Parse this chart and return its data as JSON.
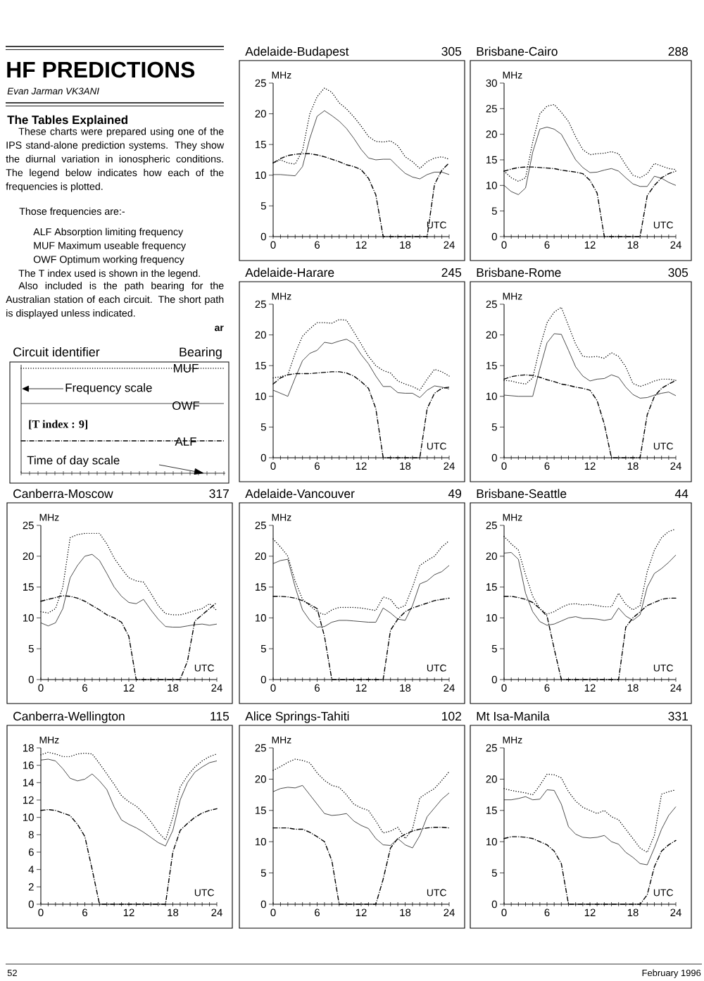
{
  "chart_data": [
    {
      "type": "other",
      "title": "HF PREDICTIONS",
      "subtitle": "Evan Jarman VK3ANI",
      "annotations": [
        "The Tables Explained",
        "These charts were prepared using one of the IPS stand-alone prediction systems. They show the diurnal variation in ionospheric conditions. The legend below indicates how each of the frequencies is plotted.",
        "Those frequencies are:-",
        "ALF Absorption limiting frequency",
        "MUF Maximum useable frequency",
        "OWF Optimum working frequency",
        "The T index used is shown in the legend.",
        "Also included is the path bearing for the Australian station of each circuit. The short path is displayed unless indicated.",
        "ar",
        "Circuit identifier",
        "Bearing",
        "MUF",
        "Frequency scale",
        "OWF",
        "[T index : 9]",
        "ALF",
        "Time of day scale",
        "52",
        "February 1996"
      ]
    },
    {
      "type": "line",
      "title": "Adelaide-Budapest",
      "subtitle": "305",
      "xlabel": "UTC",
      "ylabel": "MHz",
      "x": [
        0,
        1,
        2,
        3,
        4,
        5,
        6,
        7,
        8,
        9,
        10,
        11,
        12,
        13,
        14,
        15,
        16,
        17,
        18,
        19,
        20,
        21,
        22,
        23,
        24
      ],
      "xlim": [
        0,
        24
      ],
      "ylim": [
        0,
        25
      ],
      "yticks": [
        0,
        5,
        10,
        15,
        20,
        25
      ],
      "xticks": [
        0,
        {
          "value": 1,
          "label": null
        },
        {
          "value": 2,
          "label": null
        },
        {
          "value": 3,
          "label": null
        },
        {
          "value": 4,
          "label": null
        },
        {
          "value": 5,
          "label": null
        },
        6,
        {
          "value": 7,
          "label": null
        },
        {
          "value": 8,
          "label": null
        },
        {
          "value": 9,
          "label": null
        },
        {
          "value": 10,
          "label": null
        },
        {
          "value": 11,
          "label": null
        },
        12,
        {
          "value": 13,
          "label": null
        },
        {
          "value": 14,
          "label": null
        },
        {
          "value": 15,
          "label": null
        },
        {
          "value": 16,
          "label": null
        },
        {
          "value": 17,
          "label": null
        },
        18,
        {
          "value": 19,
          "label": null
        },
        {
          "value": 20,
          "label": null
        },
        {
          "value": 21,
          "label": null
        },
        {
          "value": 22,
          "label": null
        },
        {
          "value": 23,
          "label": null
        },
        24
      ],
      "series": [
        {
          "color": "#000000",
          "line_style": "dotted",
          "values": [
            12,
            12.5,
            12,
            11.8,
            14,
            20,
            22.8,
            24.2,
            23.5,
            21.8,
            20.8,
            19.5,
            18,
            16.3,
            15.5,
            15.4,
            15.6,
            14.8,
            13,
            12.2,
            11.1,
            12.2,
            12.8,
            13,
            12.6
          ]
        },
        {
          "color": "#000000",
          "line_style": "solid",
          "values": [
            10.1,
            10.1,
            10,
            9.9,
            11.4,
            16,
            19.6,
            20.5,
            19.7,
            18.8,
            17.6,
            16,
            14.2,
            12.8,
            12.5,
            12.6,
            12.6,
            11.4,
            10.3,
            9.7,
            9.4,
            10.1,
            10.5,
            10.5,
            10.1
          ]
        },
        {
          "color": "#000000",
          "line_style": "dashed",
          "values": [
            12,
            12.7,
            13.2,
            13.4,
            13.5,
            13.5,
            13.3,
            13,
            12.6,
            12.2,
            11.7,
            11.4,
            10.9,
            9.5,
            6.8,
            0,
            0,
            0,
            0,
            0,
            0,
            0,
            8.5,
            10.8,
            12
          ]
        }
      ]
    },
    {
      "type": "line",
      "title": "Brisbane-Cairo",
      "subtitle": "288",
      "xlabel": "UTC",
      "ylabel": "MHz",
      "x": [
        0,
        1,
        2,
        3,
        4,
        5,
        6,
        7,
        8,
        9,
        10,
        11,
        12,
        13,
        14,
        15,
        16,
        17,
        18,
        19,
        20,
        21,
        22,
        23,
        24
      ],
      "xlim": [
        0,
        24
      ],
      "ylim": [
        0,
        30
      ],
      "yticks": [
        0,
        5,
        10,
        15,
        20,
        25,
        30
      ],
      "xticks": [
        0,
        {
          "value": 1,
          "label": null
        },
        {
          "value": 2,
          "label": null
        },
        {
          "value": 3,
          "label": null
        },
        {
          "value": 4,
          "label": null
        },
        {
          "value": 5,
          "label": null
        },
        6,
        {
          "value": 7,
          "label": null
        },
        {
          "value": 8,
          "label": null
        },
        {
          "value": 9,
          "label": null
        },
        {
          "value": 10,
          "label": null
        },
        {
          "value": 11,
          "label": null
        },
        12,
        {
          "value": 13,
          "label": null
        },
        {
          "value": 14,
          "label": null
        },
        {
          "value": 15,
          "label": null
        },
        {
          "value": 16,
          "label": null
        },
        {
          "value": 17,
          "label": null
        },
        18,
        {
          "value": 19,
          "label": null
        },
        {
          "value": 20,
          "label": null
        },
        {
          "value": 21,
          "label": null
        },
        {
          "value": 22,
          "label": null
        },
        {
          "value": 23,
          "label": null
        },
        24
      ],
      "series": [
        {
          "color": "#000000",
          "line_style": "dotted",
          "values": [
            12.8,
            11.5,
            10.8,
            11.5,
            18.5,
            24,
            25.5,
            25.8,
            24.3,
            22.5,
            19.5,
            17,
            16,
            16.2,
            16.3,
            16.6,
            16.2,
            14,
            12,
            11.5,
            12.3,
            14.3,
            13.8,
            13.3,
            13.1
          ]
        },
        {
          "color": "#000000",
          "line_style": "solid",
          "values": [
            10,
            8.8,
            8.2,
            9.5,
            16.5,
            21,
            21.4,
            21,
            20,
            17.5,
            15,
            13.5,
            12.5,
            12.6,
            13,
            13.3,
            12.8,
            11.5,
            10.3,
            9.8,
            9.8,
            11.8,
            11.4,
            10.6,
            10
          ]
        },
        {
          "color": "#000000",
          "line_style": "dashed",
          "values": [
            12.8,
            13.2,
            13.5,
            13.6,
            13.6,
            13.5,
            13.4,
            13.3,
            13,
            12.8,
            12.6,
            12.3,
            11,
            8.5,
            0,
            0,
            0,
            0,
            0,
            0,
            8,
            10,
            11.5,
            12.3,
            12.8
          ]
        }
      ]
    },
    {
      "type": "line",
      "title": "Adelaide-Harare",
      "subtitle": "245",
      "xlabel": "UTC",
      "ylabel": "MHz",
      "x": [
        0,
        1,
        2,
        3,
        4,
        5,
        6,
        7,
        8,
        9,
        10,
        11,
        12,
        13,
        14,
        15,
        16,
        17,
        18,
        19,
        20,
        21,
        22,
        23,
        24
      ],
      "xlim": [
        0,
        24
      ],
      "ylim": [
        0,
        25
      ],
      "yticks": [
        0,
        5,
        10,
        15,
        20,
        25
      ],
      "xticks": [
        0,
        {
          "value": 1,
          "label": null
        },
        {
          "value": 2,
          "label": null
        },
        {
          "value": 3,
          "label": null
        },
        {
          "value": 4,
          "label": null
        },
        {
          "value": 5,
          "label": null
        },
        6,
        {
          "value": 7,
          "label": null
        },
        {
          "value": 8,
          "label": null
        },
        {
          "value": 9,
          "label": null
        },
        {
          "value": 10,
          "label": null
        },
        {
          "value": 11,
          "label": null
        },
        12,
        {
          "value": 13,
          "label": null
        },
        {
          "value": 14,
          "label": null
        },
        {
          "value": 15,
          "label": null
        },
        {
          "value": 16,
          "label": null
        },
        {
          "value": 17,
          "label": null
        },
        18,
        {
          "value": 19,
          "label": null
        },
        {
          "value": 20,
          "label": null
        },
        {
          "value": 21,
          "label": null
        },
        {
          "value": 22,
          "label": null
        },
        {
          "value": 23,
          "label": null
        },
        24
      ],
      "series": [
        {
          "color": "#000000",
          "line_style": "dotted",
          "values": [
            13,
            13.2,
            13.5,
            17,
            19.8,
            21,
            22,
            22,
            21.9,
            22.5,
            22.4,
            20.5,
            18.5,
            16.5,
            15,
            14.2,
            13.8,
            12.5,
            12,
            11.6,
            11,
            12.8,
            14.4,
            14,
            13.3
          ]
        },
        {
          "color": "#000000",
          "line_style": "solid",
          "values": [
            11,
            10.5,
            10,
            13,
            15.8,
            17,
            17.5,
            18.8,
            18.6,
            19,
            19.3,
            18.6,
            16.8,
            15.3,
            13.3,
            11.6,
            11.6,
            10.6,
            10.5,
            10.5,
            9.8,
            11,
            11.7,
            11.5,
            11.2
          ]
        },
        {
          "color": "#000000",
          "line_style": "dashed",
          "values": [
            12,
            13,
            13.5,
            13.7,
            13.7,
            13.7,
            13.8,
            13.9,
            14,
            14,
            13.8,
            13.3,
            12.4,
            11.3,
            8,
            0,
            0,
            0,
            0,
            0,
            0,
            8,
            10.5,
            11.3,
            11.5
          ]
        }
      ]
    },
    {
      "type": "line",
      "title": "Brisbane-Rome",
      "subtitle": "305",
      "xlabel": "UTC",
      "ylabel": "MHz",
      "x": [
        0,
        1,
        2,
        3,
        4,
        5,
        6,
        7,
        8,
        9,
        10,
        11,
        12,
        13,
        14,
        15,
        16,
        17,
        18,
        19,
        20,
        21,
        22,
        23,
        24
      ],
      "xlim": [
        0,
        24
      ],
      "ylim": [
        0,
        25
      ],
      "yticks": [
        0,
        5,
        10,
        15,
        20,
        25
      ],
      "xticks": [
        0,
        {
          "value": 1,
          "label": null
        },
        {
          "value": 2,
          "label": null
        },
        {
          "value": 3,
          "label": null
        },
        {
          "value": 4,
          "label": null
        },
        {
          "value": 5,
          "label": null
        },
        6,
        {
          "value": 7,
          "label": null
        },
        {
          "value": 8,
          "label": null
        },
        {
          "value": 9,
          "label": null
        },
        {
          "value": 10,
          "label": null
        },
        {
          "value": 11,
          "label": null
        },
        12,
        {
          "value": 13,
          "label": null
        },
        {
          "value": 14,
          "label": null
        },
        {
          "value": 15,
          "label": null
        },
        {
          "value": 16,
          "label": null
        },
        {
          "value": 17,
          "label": null
        },
        18,
        {
          "value": 19,
          "label": null
        },
        {
          "value": 20,
          "label": null
        },
        {
          "value": 21,
          "label": null
        },
        {
          "value": 22,
          "label": null
        },
        {
          "value": 23,
          "label": null
        },
        24
      ],
      "series": [
        {
          "color": "#000000",
          "line_style": "dotted",
          "values": [
            12.6,
            12.5,
            12.2,
            12,
            13,
            18,
            22,
            23.7,
            24.5,
            21.5,
            18.5,
            16.5,
            16.4,
            16.5,
            16.2,
            17.1,
            16.5,
            14.8,
            12.1,
            11.6,
            12,
            12.5,
            12.8,
            12.8,
            12.6
          ]
        },
        {
          "color": "#000000",
          "line_style": "solid",
          "values": [
            10.2,
            10.1,
            10,
            10,
            10,
            14.5,
            18.7,
            20.2,
            20.1,
            17.5,
            14.8,
            13.3,
            12.5,
            12.8,
            12.9,
            13.5,
            13.1,
            11.5,
            10.3,
            9.7,
            9.8,
            10.2,
            10.5,
            10.7,
            10.1
          ]
        },
        {
          "color": "#000000",
          "line_style": "dashed",
          "values": [
            12.8,
            13.2,
            13.4,
            13.5,
            13.4,
            13.1,
            12.7,
            12.4,
            12,
            11.8,
            11.5,
            11.3,
            11,
            9.3,
            5.5,
            0,
            0,
            0,
            0,
            0,
            7,
            10,
            11.3,
            12,
            12.6
          ]
        }
      ]
    },
    {
      "type": "line",
      "title": "Canberra-Moscow",
      "subtitle": "317",
      "xlabel": "UTC",
      "ylabel": "MHz",
      "x": [
        0,
        1,
        2,
        3,
        4,
        5,
        6,
        7,
        8,
        9,
        10,
        11,
        12,
        13,
        14,
        15,
        16,
        17,
        18,
        19,
        20,
        21,
        22,
        23,
        24
      ],
      "xlim": [
        0,
        24
      ],
      "ylim": [
        0,
        25
      ],
      "yticks": [
        0,
        5,
        10,
        15,
        20,
        25
      ],
      "xticks": [
        0,
        {
          "value": 1,
          "label": null
        },
        {
          "value": 2,
          "label": null
        },
        {
          "value": 3,
          "label": null
        },
        {
          "value": 4,
          "label": null
        },
        {
          "value": 5,
          "label": null
        },
        6,
        {
          "value": 7,
          "label": null
        },
        {
          "value": 8,
          "label": null
        },
        {
          "value": 9,
          "label": null
        },
        {
          "value": 10,
          "label": null
        },
        {
          "value": 11,
          "label": null
        },
        12,
        {
          "value": 13,
          "label": null
        },
        {
          "value": 14,
          "label": null
        },
        {
          "value": 15,
          "label": null
        },
        {
          "value": 16,
          "label": null
        },
        {
          "value": 17,
          "label": null
        },
        18,
        {
          "value": 19,
          "label": null
        },
        {
          "value": 20,
          "label": null
        },
        {
          "value": 21,
          "label": null
        },
        {
          "value": 22,
          "label": null
        },
        {
          "value": 23,
          "label": null
        },
        24
      ],
      "series": [
        {
          "color": "#000000",
          "line_style": "dotted",
          "values": [
            11,
            10.8,
            11.5,
            15,
            23,
            23.5,
            23.7,
            23.7,
            23.7,
            22,
            19.7,
            18,
            16.5,
            16,
            15.8,
            14,
            12,
            10.7,
            10.5,
            10.5,
            10.8,
            11.2,
            11.5,
            12.3,
            11.2
          ]
        },
        {
          "color": "#000000",
          "line_style": "solid",
          "values": [
            9.2,
            8.7,
            9.2,
            11.5,
            16.5,
            18.5,
            20,
            20.3,
            19.3,
            17.2,
            15,
            13.5,
            12.5,
            12.3,
            13,
            11.3,
            9.8,
            8.6,
            8.5,
            8.5,
            8.7,
            8.9,
            9,
            8.8,
            9
          ]
        },
        {
          "color": "#000000",
          "line_style": "dashed",
          "values": [
            12.7,
            13,
            13.3,
            13.6,
            13.5,
            13.2,
            12.7,
            12,
            11.3,
            10.5,
            10,
            9.3,
            7,
            0,
            0,
            0,
            0,
            0,
            0,
            0,
            3,
            9.5,
            10.5,
            11.5,
            12.5
          ]
        }
      ]
    },
    {
      "type": "line",
      "title": "Adelaide-Vancouver",
      "subtitle": "49",
      "xlabel": "UTC",
      "ylabel": "MHz",
      "x": [
        0,
        1,
        2,
        3,
        4,
        5,
        6,
        7,
        8,
        9,
        10,
        11,
        12,
        13,
        14,
        15,
        16,
        17,
        18,
        19,
        20,
        21,
        22,
        23,
        24
      ],
      "xlim": [
        0,
        24
      ],
      "ylim": [
        0,
        25
      ],
      "yticks": [
        0,
        5,
        10,
        15,
        20,
        25
      ],
      "xticks": [
        0,
        {
          "value": 1,
          "label": null
        },
        {
          "value": 2,
          "label": null
        },
        {
          "value": 3,
          "label": null
        },
        {
          "value": 4,
          "label": null
        },
        {
          "value": 5,
          "label": null
        },
        6,
        {
          "value": 7,
          "label": null
        },
        {
          "value": 8,
          "label": null
        },
        {
          "value": 9,
          "label": null
        },
        {
          "value": 10,
          "label": null
        },
        {
          "value": 11,
          "label": null
        },
        12,
        {
          "value": 13,
          "label": null
        },
        {
          "value": 14,
          "label": null
        },
        {
          "value": 15,
          "label": null
        },
        {
          "value": 16,
          "label": null
        },
        {
          "value": 17,
          "label": null
        },
        18,
        {
          "value": 19,
          "label": null
        },
        {
          "value": 20,
          "label": null
        },
        {
          "value": 21,
          "label": null
        },
        {
          "value": 22,
          "label": null
        },
        {
          "value": 23,
          "label": null
        },
        24
      ],
      "series": [
        {
          "color": "#000000",
          "line_style": "dotted",
          "values": [
            22.8,
            21.5,
            20,
            16,
            13,
            12,
            11,
            10.5,
            11.3,
            11.7,
            11.7,
            11.7,
            11.6,
            11.4,
            11.2,
            13.4,
            13,
            11.5,
            12,
            15,
            18.5,
            19.3,
            20,
            21.5,
            22.5
          ]
        },
        {
          "color": "#000000",
          "line_style": "solid",
          "values": [
            18.8,
            19.3,
            19.5,
            15,
            11.3,
            9.6,
            8.5,
            8.6,
            9.3,
            9.6,
            9.6,
            9.5,
            9.4,
            9.3,
            9.3,
            11.6,
            10.8,
            9.8,
            9.6,
            12,
            15.5,
            16,
            17,
            17.5,
            18.5
          ]
        },
        {
          "color": "#000000",
          "line_style": "dashed",
          "values": [
            13.5,
            13.5,
            13.4,
            13.2,
            12.8,
            12.2,
            11.5,
            7,
            0,
            0,
            0,
            0,
            0,
            0,
            0,
            0,
            8,
            9.8,
            11,
            11.6,
            12,
            12.4,
            12.8,
            13,
            13.2
          ]
        }
      ]
    },
    {
      "type": "line",
      "title": "Brisbane-Seattle",
      "subtitle": "44",
      "xlabel": "UTC",
      "ylabel": "MHz",
      "x": [
        0,
        1,
        2,
        3,
        4,
        5,
        6,
        7,
        8,
        9,
        10,
        11,
        12,
        13,
        14,
        15,
        16,
        17,
        18,
        19,
        20,
        21,
        22,
        23,
        24
      ],
      "xlim": [
        0,
        24
      ],
      "ylim": [
        0,
        25
      ],
      "yticks": [
        0,
        5,
        10,
        15,
        20,
        25
      ],
      "xticks": [
        0,
        {
          "value": 1,
          "label": null
        },
        {
          "value": 2,
          "label": null
        },
        {
          "value": 3,
          "label": null
        },
        {
          "value": 4,
          "label": null
        },
        {
          "value": 5,
          "label": null
        },
        6,
        {
          "value": 7,
          "label": null
        },
        {
          "value": 8,
          "label": null
        },
        {
          "value": 9,
          "label": null
        },
        {
          "value": 10,
          "label": null
        },
        {
          "value": 11,
          "label": null
        },
        12,
        {
          "value": 13,
          "label": null
        },
        {
          "value": 14,
          "label": null
        },
        {
          "value": 15,
          "label": null
        },
        {
          "value": 16,
          "label": null
        },
        {
          "value": 17,
          "label": null
        },
        18,
        {
          "value": 19,
          "label": null
        },
        {
          "value": 20,
          "label": null
        },
        {
          "value": 21,
          "label": null
        },
        {
          "value": 22,
          "label": null
        },
        {
          "value": 23,
          "label": null
        },
        24
      ],
      "series": [
        {
          "color": "#000000",
          "line_style": "dotted",
          "values": [
            23.2,
            22,
            21,
            17,
            13.5,
            11.5,
            10.6,
            11,
            11.7,
            12.2,
            12.3,
            12.1,
            12.2,
            12,
            11.8,
            11.8,
            14,
            12.2,
            11.3,
            12,
            17.5,
            21,
            23,
            24,
            24.4
          ]
        },
        {
          "color": "#000000",
          "line_style": "solid",
          "values": [
            20.5,
            20.6,
            19.5,
            14,
            11,
            9.4,
            8.8,
            9,
            9.5,
            10,
            10.2,
            9.9,
            9.9,
            9.8,
            9.6,
            9.8,
            11.6,
            10.3,
            9.6,
            10.5,
            15,
            17.2,
            18,
            19,
            20.2
          ]
        },
        {
          "color": "#000000",
          "line_style": "dashed",
          "values": [
            13.5,
            13.5,
            13.3,
            13,
            12.5,
            11.5,
            10.3,
            5,
            0,
            0,
            0,
            0,
            0,
            0,
            0,
            0,
            0,
            8.5,
            10,
            11,
            12,
            12.5,
            13,
            13.2,
            13.2
          ]
        }
      ]
    },
    {
      "type": "line",
      "title": "Canberra-Wellington",
      "subtitle": "115",
      "xlabel": "UTC",
      "ylabel": "MHz",
      "x": [
        0,
        1,
        2,
        3,
        4,
        5,
        6,
        7,
        8,
        9,
        10,
        11,
        12,
        13,
        14,
        15,
        16,
        17,
        18,
        19,
        20,
        21,
        22,
        23,
        24
      ],
      "xlim": [
        0,
        24
      ],
      "ylim": [
        0,
        18
      ],
      "yticks": [
        0,
        2,
        4,
        6,
        8,
        10,
        12,
        14,
        16,
        18
      ],
      "xticks": [
        0,
        {
          "value": 1,
          "label": null
        },
        {
          "value": 2,
          "label": null
        },
        {
          "value": 3,
          "label": null
        },
        {
          "value": 4,
          "label": null
        },
        {
          "value": 5,
          "label": null
        },
        6,
        {
          "value": 7,
          "label": null
        },
        {
          "value": 8,
          "label": null
        },
        {
          "value": 9,
          "label": null
        },
        {
          "value": 10,
          "label": null
        },
        {
          "value": 11,
          "label": null
        },
        12,
        {
          "value": 13,
          "label": null
        },
        {
          "value": 14,
          "label": null
        },
        {
          "value": 15,
          "label": null
        },
        {
          "value": 16,
          "label": null
        },
        {
          "value": 17,
          "label": null
        },
        18,
        {
          "value": 19,
          "label": null
        },
        {
          "value": 20,
          "label": null
        },
        {
          "value": 21,
          "label": null
        },
        {
          "value": 22,
          "label": null
        },
        {
          "value": 23,
          "label": null
        },
        24
      ],
      "series": [
        {
          "color": "#000000",
          "line_style": "dotted",
          "values": [
            17.2,
            17.5,
            17.3,
            17,
            17,
            17.3,
            17.4,
            17.3,
            16.2,
            15,
            13.8,
            12.5,
            11.8,
            11.3,
            10.5,
            9.5,
            8.3,
            7.4,
            10,
            13.5,
            14.8,
            15.8,
            16.5,
            17,
            17.3
          ]
        },
        {
          "color": "#000000",
          "line_style": "solid",
          "values": [
            16.6,
            16.7,
            16.5,
            15.6,
            14.5,
            14.2,
            14.4,
            15,
            14.2,
            13.2,
            11.2,
            9.7,
            9.2,
            8.8,
            8.3,
            7.7,
            7.1,
            6.7,
            8.5,
            12,
            14,
            15.2,
            15.8,
            16.3,
            16.5
          ]
        },
        {
          "color": "#000000",
          "line_style": "dashed",
          "values": [
            10.8,
            10.9,
            10.8,
            10.5,
            10.2,
            9.2,
            7.8,
            4,
            0,
            0,
            0,
            0,
            0,
            0,
            0,
            0,
            0,
            0,
            6,
            8.5,
            9.3,
            10,
            10.5,
            10.8,
            11
          ]
        }
      ]
    },
    {
      "type": "line",
      "title": "Alice Springs-Tahiti",
      "subtitle": "102",
      "xlabel": "UTC",
      "ylabel": "MHz",
      "x": [
        0,
        1,
        2,
        3,
        4,
        5,
        6,
        7,
        8,
        9,
        10,
        11,
        12,
        13,
        14,
        15,
        16,
        17,
        18,
        19,
        20,
        21,
        22,
        23,
        24
      ],
      "xlim": [
        0,
        24
      ],
      "ylim": [
        0,
        25
      ],
      "yticks": [
        0,
        5,
        10,
        15,
        20,
        25
      ],
      "xticks": [
        0,
        {
          "value": 1,
          "label": null
        },
        {
          "value": 2,
          "label": null
        },
        {
          "value": 3,
          "label": null
        },
        {
          "value": 4,
          "label": null
        },
        {
          "value": 5,
          "label": null
        },
        6,
        {
          "value": 7,
          "label": null
        },
        {
          "value": 8,
          "label": null
        },
        {
          "value": 9,
          "label": null
        },
        {
          "value": 10,
          "label": null
        },
        {
          "value": 11,
          "label": null
        },
        12,
        {
          "value": 13,
          "label": null
        },
        {
          "value": 14,
          "label": null
        },
        {
          "value": 15,
          "label": null
        },
        {
          "value": 16,
          "label": null
        },
        {
          "value": 17,
          "label": null
        },
        18,
        {
          "value": 19,
          "label": null
        },
        {
          "value": 20,
          "label": null
        },
        {
          "value": 21,
          "label": null
        },
        {
          "value": 22,
          "label": null
        },
        {
          "value": 23,
          "label": null
        },
        24
      ],
      "series": [
        {
          "color": "#000000",
          "line_style": "dotted",
          "values": [
            21.4,
            22,
            22.7,
            23.2,
            23,
            22.6,
            21,
            19.8,
            19,
            18.7,
            17.5,
            16,
            15.4,
            15,
            13.3,
            11.4,
            11.7,
            12.3,
            10.5,
            12,
            17,
            17.8,
            18.5,
            19.8,
            21.2
          ]
        },
        {
          "color": "#000000",
          "line_style": "solid",
          "values": [
            18,
            18.5,
            18.7,
            18.6,
            19,
            17.5,
            16,
            14.5,
            14.2,
            14.3,
            14.5,
            13.3,
            12.6,
            12.1,
            10.5,
            9.5,
            9.4,
            10.5,
            9.5,
            9,
            11,
            14,
            15.4,
            16.8,
            17.8
          ]
        },
        {
          "color": "#000000",
          "line_style": "dashed",
          "values": [
            12.2,
            12.2,
            12.2,
            12,
            12,
            11.5,
            10.8,
            10,
            7,
            0,
            0,
            0,
            0,
            0,
            0,
            4,
            9,
            10.5,
            11.2,
            11.7,
            12,
            12.2,
            12.3,
            12.3,
            12.2
          ]
        }
      ]
    },
    {
      "type": "line",
      "title": "Mt Isa-Manila",
      "subtitle": "331",
      "xlabel": "UTC",
      "ylabel": "MHz",
      "x": [
        0,
        1,
        2,
        3,
        4,
        5,
        6,
        7,
        8,
        9,
        10,
        11,
        12,
        13,
        14,
        15,
        16,
        17,
        18,
        19,
        20,
        21,
        22,
        23,
        24
      ],
      "xlim": [
        0,
        24
      ],
      "ylim": [
        0,
        25
      ],
      "yticks": [
        0,
        5,
        10,
        15,
        20,
        25
      ],
      "xticks": [
        0,
        {
          "value": 1,
          "label": null
        },
        {
          "value": 2,
          "label": null
        },
        {
          "value": 3,
          "label": null
        },
        {
          "value": 4,
          "label": null
        },
        {
          "value": 5,
          "label": null
        },
        6,
        {
          "value": 7,
          "label": null
        },
        {
          "value": 8,
          "label": null
        },
        {
          "value": 9,
          "label": null
        },
        {
          "value": 10,
          "label": null
        },
        {
          "value": 11,
          "label": null
        },
        12,
        {
          "value": 13,
          "label": null
        },
        {
          "value": 14,
          "label": null
        },
        {
          "value": 15,
          "label": null
        },
        {
          "value": 16,
          "label": null
        },
        {
          "value": 17,
          "label": null
        },
        18,
        {
          "value": 19,
          "label": null
        },
        {
          "value": 20,
          "label": null
        },
        {
          "value": 21,
          "label": null
        },
        {
          "value": 22,
          "label": null
        },
        {
          "value": 23,
          "label": null
        },
        24
      ],
      "series": [
        {
          "color": "#000000",
          "line_style": "dotted",
          "values": [
            18.5,
            18.2,
            18,
            17.8,
            17.5,
            19,
            20.8,
            20.7,
            20.2,
            18,
            16.5,
            15.5,
            15,
            14.5,
            15,
            14,
            13.5,
            12,
            10.5,
            9,
            8.3,
            11,
            17.6,
            18,
            18.3
          ]
        },
        {
          "color": "#000000",
          "line_style": "solid",
          "values": [
            16.7,
            16.7,
            16.9,
            17.2,
            16.7,
            16.8,
            18.3,
            18.2,
            16,
            12.4,
            11.2,
            10.7,
            10.6,
            10.7,
            11,
            10,
            9.6,
            8.3,
            7.5,
            6.5,
            6.3,
            9,
            12,
            14.2,
            15.6
          ]
        },
        {
          "color": "#000000",
          "line_style": "dashed",
          "values": [
            10.5,
            10.8,
            10.8,
            10.7,
            10.5,
            10,
            9.5,
            8.5,
            6.5,
            0,
            0,
            0,
            0,
            0,
            0,
            0,
            0,
            0,
            0,
            0,
            1.5,
            6,
            8.5,
            9.5,
            10.2
          ]
        }
      ]
    }
  ]
}
